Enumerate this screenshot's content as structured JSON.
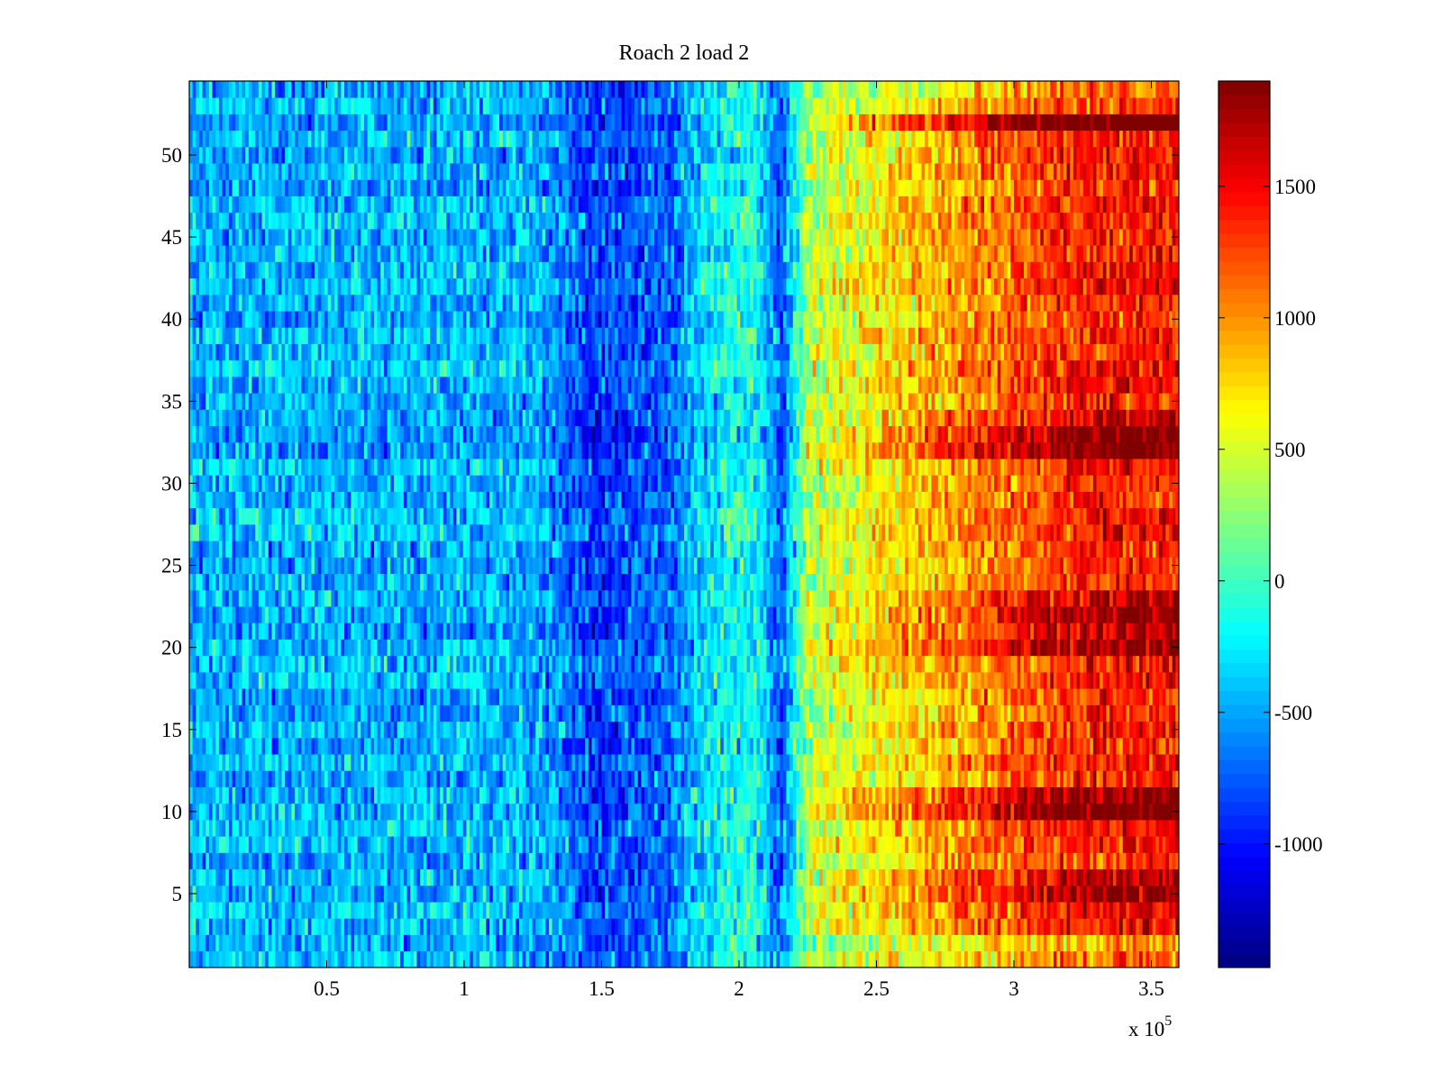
{
  "chart_data": {
    "type": "heatmap",
    "title": "Roach 2 load 2",
    "xlabel": "",
    "ylabel": "",
    "x_exponent_label": "x 10",
    "x_exponent": "5",
    "xlim": [
      0,
      3.6
    ],
    "ylim": [
      0.5,
      54.5
    ],
    "x_ticks": [
      0.5,
      1,
      1.5,
      2,
      2.5,
      3,
      3.5
    ],
    "x_tick_labels": [
      "0.5",
      "1",
      "1.5",
      "2",
      "2.5",
      "3",
      "3.5"
    ],
    "y_ticks": [
      5,
      10,
      15,
      20,
      25,
      30,
      35,
      40,
      45,
      50
    ],
    "y_tick_labels": [
      "5",
      "10",
      "15",
      "20",
      "25",
      "30",
      "35",
      "40",
      "45",
      "50"
    ],
    "rows": 54,
    "colormap": "jet",
    "clim": [
      -1470,
      1900
    ],
    "colorbar_ticks": [
      -1000,
      -500,
      0,
      500,
      1000,
      1500
    ],
    "colorbar_tick_labels": [
      "-1000",
      "-500",
      "0",
      "500",
      "1000",
      "1500"
    ],
    "column_bin_width_x1e5": 0.1,
    "column_mean_profile": [
      -450,
      -450,
      -450,
      -450,
      -450,
      -450,
      -450,
      -450,
      -450,
      -450,
      -450,
      -450,
      -450,
      -600,
      -850,
      -800,
      -750,
      -700,
      -350,
      -200,
      -100,
      -750,
      350,
      500,
      600,
      700,
      800,
      900,
      1000,
      1100,
      1200,
      1300,
      1350,
      1400,
      1400,
      1400
    ],
    "row_gain": {
      "1": 0.8,
      "2": 0.7,
      "5": 1.3,
      "6": 1.2,
      "10": 1.4,
      "11": 1.3,
      "20": 1.25,
      "21": 1.3,
      "22": 1.3,
      "23": 1.2,
      "32": 1.5,
      "33": 1.45,
      "34": 1.2,
      "36": 1.1,
      "52": 1.6,
      "50": 1.1,
      "53": 0.9,
      "54": 0.85
    },
    "noise_amplitude": 380
  }
}
